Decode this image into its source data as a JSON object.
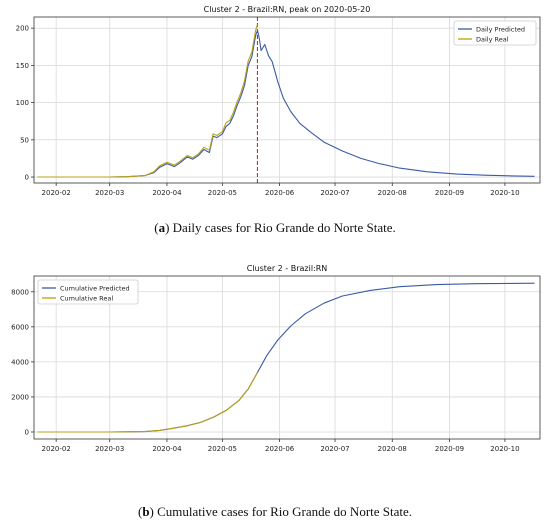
{
  "captions": {
    "a_label": "a",
    "a_text": " Daily cases for Rio Grande do Norte State.",
    "b_label": "b",
    "b_text": " Cumulative cases for Rio Grande do Norte State."
  },
  "chart_data": [
    {
      "type": "line",
      "title": "Cluster 2 - Brazil:RN, peak on 2020-05-20",
      "xlabel": "",
      "ylabel": "",
      "xlim": [
        "2020-01-20",
        "2020-10-20"
      ],
      "ylim": [
        -8,
        215
      ],
      "x_ticks": [
        "2020-02",
        "2020-03",
        "2020-04",
        "2020-05",
        "2020-06",
        "2020-07",
        "2020-08",
        "2020-09",
        "2020-10"
      ],
      "y_ticks": [
        0,
        50,
        100,
        150,
        200
      ],
      "grid": true,
      "legend": "top-right",
      "peak_marker": {
        "date": "2020-05-20",
        "color": "#cc3311",
        "style": "dashed"
      },
      "series": [
        {
          "name": "Daily Predicted",
          "color": "#3b5ba7",
          "points": [
            [
              "2020-01-22",
              0
            ],
            [
              "2020-02-15",
              0
            ],
            [
              "2020-03-01",
              0
            ],
            [
              "2020-03-10",
              0.5
            ],
            [
              "2020-03-20",
              2
            ],
            [
              "2020-03-25",
              6
            ],
            [
              "2020-03-28",
              13
            ],
            [
              "2020-04-01",
              18
            ],
            [
              "2020-04-05",
              14
            ],
            [
              "2020-04-08",
              19
            ],
            [
              "2020-04-12",
              27
            ],
            [
              "2020-04-15",
              24
            ],
            [
              "2020-04-18",
              29
            ],
            [
              "2020-04-21",
              37
            ],
            [
              "2020-04-24",
              33
            ],
            [
              "2020-04-26",
              55
            ],
            [
              "2020-04-28",
              53
            ],
            [
              "2020-05-01",
              58
            ],
            [
              "2020-05-03",
              68
            ],
            [
              "2020-05-05",
              72
            ],
            [
              "2020-05-07",
              82
            ],
            [
              "2020-05-09",
              96
            ],
            [
              "2020-05-11",
              108
            ],
            [
              "2020-05-13",
              123
            ],
            [
              "2020-05-15",
              150
            ],
            [
              "2020-05-17",
              162
            ],
            [
              "2020-05-19",
              190
            ],
            [
              "2020-05-20",
              197
            ],
            [
              "2020-05-21",
              186
            ],
            [
              "2020-05-22",
              170
            ],
            [
              "2020-05-24",
              178
            ],
            [
              "2020-05-26",
              163
            ],
            [
              "2020-05-28",
              155
            ],
            [
              "2020-05-31",
              128
            ],
            [
              "2020-06-03",
              106
            ],
            [
              "2020-06-07",
              88
            ],
            [
              "2020-06-12",
              72
            ],
            [
              "2020-06-18",
              60
            ],
            [
              "2020-06-25",
              47
            ],
            [
              "2020-07-05",
              35
            ],
            [
              "2020-07-15",
              25
            ],
            [
              "2020-07-25",
              18
            ],
            [
              "2020-08-05",
              12
            ],
            [
              "2020-08-20",
              7
            ],
            [
              "2020-09-05",
              4
            ],
            [
              "2020-09-20",
              2.5
            ],
            [
              "2020-10-05",
              1.5
            ],
            [
              "2020-10-17",
              1
            ]
          ]
        },
        {
          "name": "Daily Real",
          "color": "#b8a016",
          "points": [
            [
              "2020-01-22",
              0
            ],
            [
              "2020-02-15",
              0
            ],
            [
              "2020-03-01",
              0
            ],
            [
              "2020-03-10",
              0.5
            ],
            [
              "2020-03-20",
              2
            ],
            [
              "2020-03-25",
              7
            ],
            [
              "2020-03-28",
              15
            ],
            [
              "2020-04-01",
              20
            ],
            [
              "2020-04-05",
              16
            ],
            [
              "2020-04-08",
              21
            ],
            [
              "2020-04-12",
              29
            ],
            [
              "2020-04-15",
              26
            ],
            [
              "2020-04-18",
              31
            ],
            [
              "2020-04-21",
              40
            ],
            [
              "2020-04-24",
              36
            ],
            [
              "2020-04-26",
              58
            ],
            [
              "2020-04-28",
              56
            ],
            [
              "2020-05-01",
              61
            ],
            [
              "2020-05-03",
              73
            ],
            [
              "2020-05-05",
              76
            ],
            [
              "2020-05-07",
              87
            ],
            [
              "2020-05-09",
              101
            ],
            [
              "2020-05-11",
              113
            ],
            [
              "2020-05-13",
              129
            ],
            [
              "2020-05-15",
              156
            ],
            [
              "2020-05-17",
              168
            ],
            [
              "2020-05-19",
              197
            ],
            [
              "2020-05-20",
              205
            ]
          ]
        }
      ]
    },
    {
      "type": "line",
      "title": "Cluster 2 - Brazil:RN",
      "xlabel": "",
      "ylabel": "",
      "xlim": [
        "2020-01-20",
        "2020-10-20"
      ],
      "ylim": [
        -400,
        8900
      ],
      "x_ticks": [
        "2020-02",
        "2020-03",
        "2020-04",
        "2020-05",
        "2020-06",
        "2020-07",
        "2020-08",
        "2020-09",
        "2020-10"
      ],
      "y_ticks": [
        0,
        2000,
        4000,
        6000,
        8000
      ],
      "grid": true,
      "legend": "top-left",
      "series": [
        {
          "name": "Cumulative Predicted",
          "color": "#3b5ba7",
          "points": [
            [
              "2020-01-22",
              0
            ],
            [
              "2020-03-01",
              0
            ],
            [
              "2020-03-20",
              20
            ],
            [
              "2020-03-28",
              90
            ],
            [
              "2020-04-05",
              220
            ],
            [
              "2020-04-12",
              360
            ],
            [
              "2020-04-19",
              540
            ],
            [
              "2020-04-26",
              830
            ],
            [
              "2020-05-03",
              1230
            ],
            [
              "2020-05-10",
              1800
            ],
            [
              "2020-05-15",
              2450
            ],
            [
              "2020-05-20",
              3400
            ],
            [
              "2020-05-25",
              4350
            ],
            [
              "2020-05-31",
              5250
            ],
            [
              "2020-06-07",
              6050
            ],
            [
              "2020-06-15",
              6750
            ],
            [
              "2020-06-25",
              7350
            ],
            [
              "2020-07-05",
              7760
            ],
            [
              "2020-07-20",
              8080
            ],
            [
              "2020-08-05",
              8290
            ],
            [
              "2020-08-25",
              8410
            ],
            [
              "2020-09-15",
              8460
            ],
            [
              "2020-10-05",
              8480
            ],
            [
              "2020-10-17",
              8490
            ]
          ]
        },
        {
          "name": "Cumulative Real",
          "color": "#b8a016",
          "points": [
            [
              "2020-01-22",
              0
            ],
            [
              "2020-03-01",
              0
            ],
            [
              "2020-03-20",
              20
            ],
            [
              "2020-03-28",
              90
            ],
            [
              "2020-04-05",
              220
            ],
            [
              "2020-04-12",
              360
            ],
            [
              "2020-04-19",
              540
            ],
            [
              "2020-04-26",
              830
            ],
            [
              "2020-05-03",
              1230
            ],
            [
              "2020-05-10",
              1800
            ],
            [
              "2020-05-15",
              2450
            ],
            [
              "2020-05-20",
              3400
            ]
          ]
        }
      ]
    }
  ]
}
